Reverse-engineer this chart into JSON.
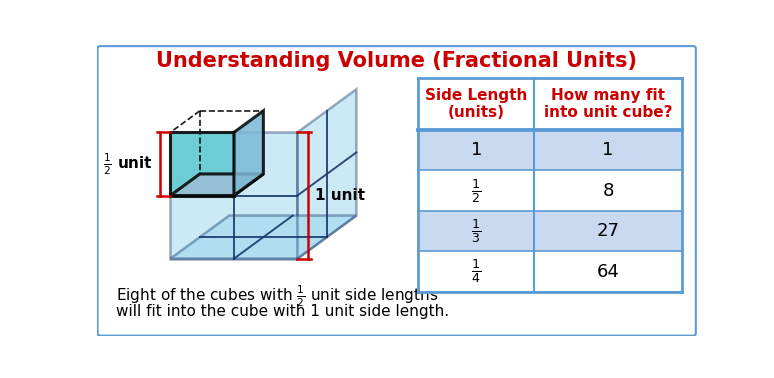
{
  "title": "Understanding Volume (Fractional Units)",
  "title_color": "#cc0000",
  "title_fontsize": 15,
  "bg_color": "#ffffff",
  "border_color": "#5b9bd5",
  "table_header_color": "#cc0000",
  "table_row_colors": [
    "#c9d9f0",
    "#ffffff",
    "#c9d9f0",
    "#ffffff"
  ],
  "table_border_color": "#5b9bd5",
  "col1_header": "Side Length\n(units)",
  "col2_header": "How many fit\ninto unit cube?",
  "side_lengths": [
    "1",
    "$\\frac{1}{2}$",
    "$\\frac{1}{3}$",
    "$\\frac{1}{4}$"
  ],
  "how_many": [
    "1",
    "8",
    "27",
    "64"
  ],
  "label_1unit": "1 unit",
  "label_half": "$\\frac{1}{2}$ unit",
  "light_blue": "#87ceeb",
  "cyan_blue": "#5cc8d0",
  "small_cube_front": "#5ecad4",
  "small_cube_top": "#9bbdd4",
  "edge_dark": "#1a3a6b",
  "edge_black": "#000000",
  "bracket_color": "#cc0000",
  "annot_color": "#000000"
}
